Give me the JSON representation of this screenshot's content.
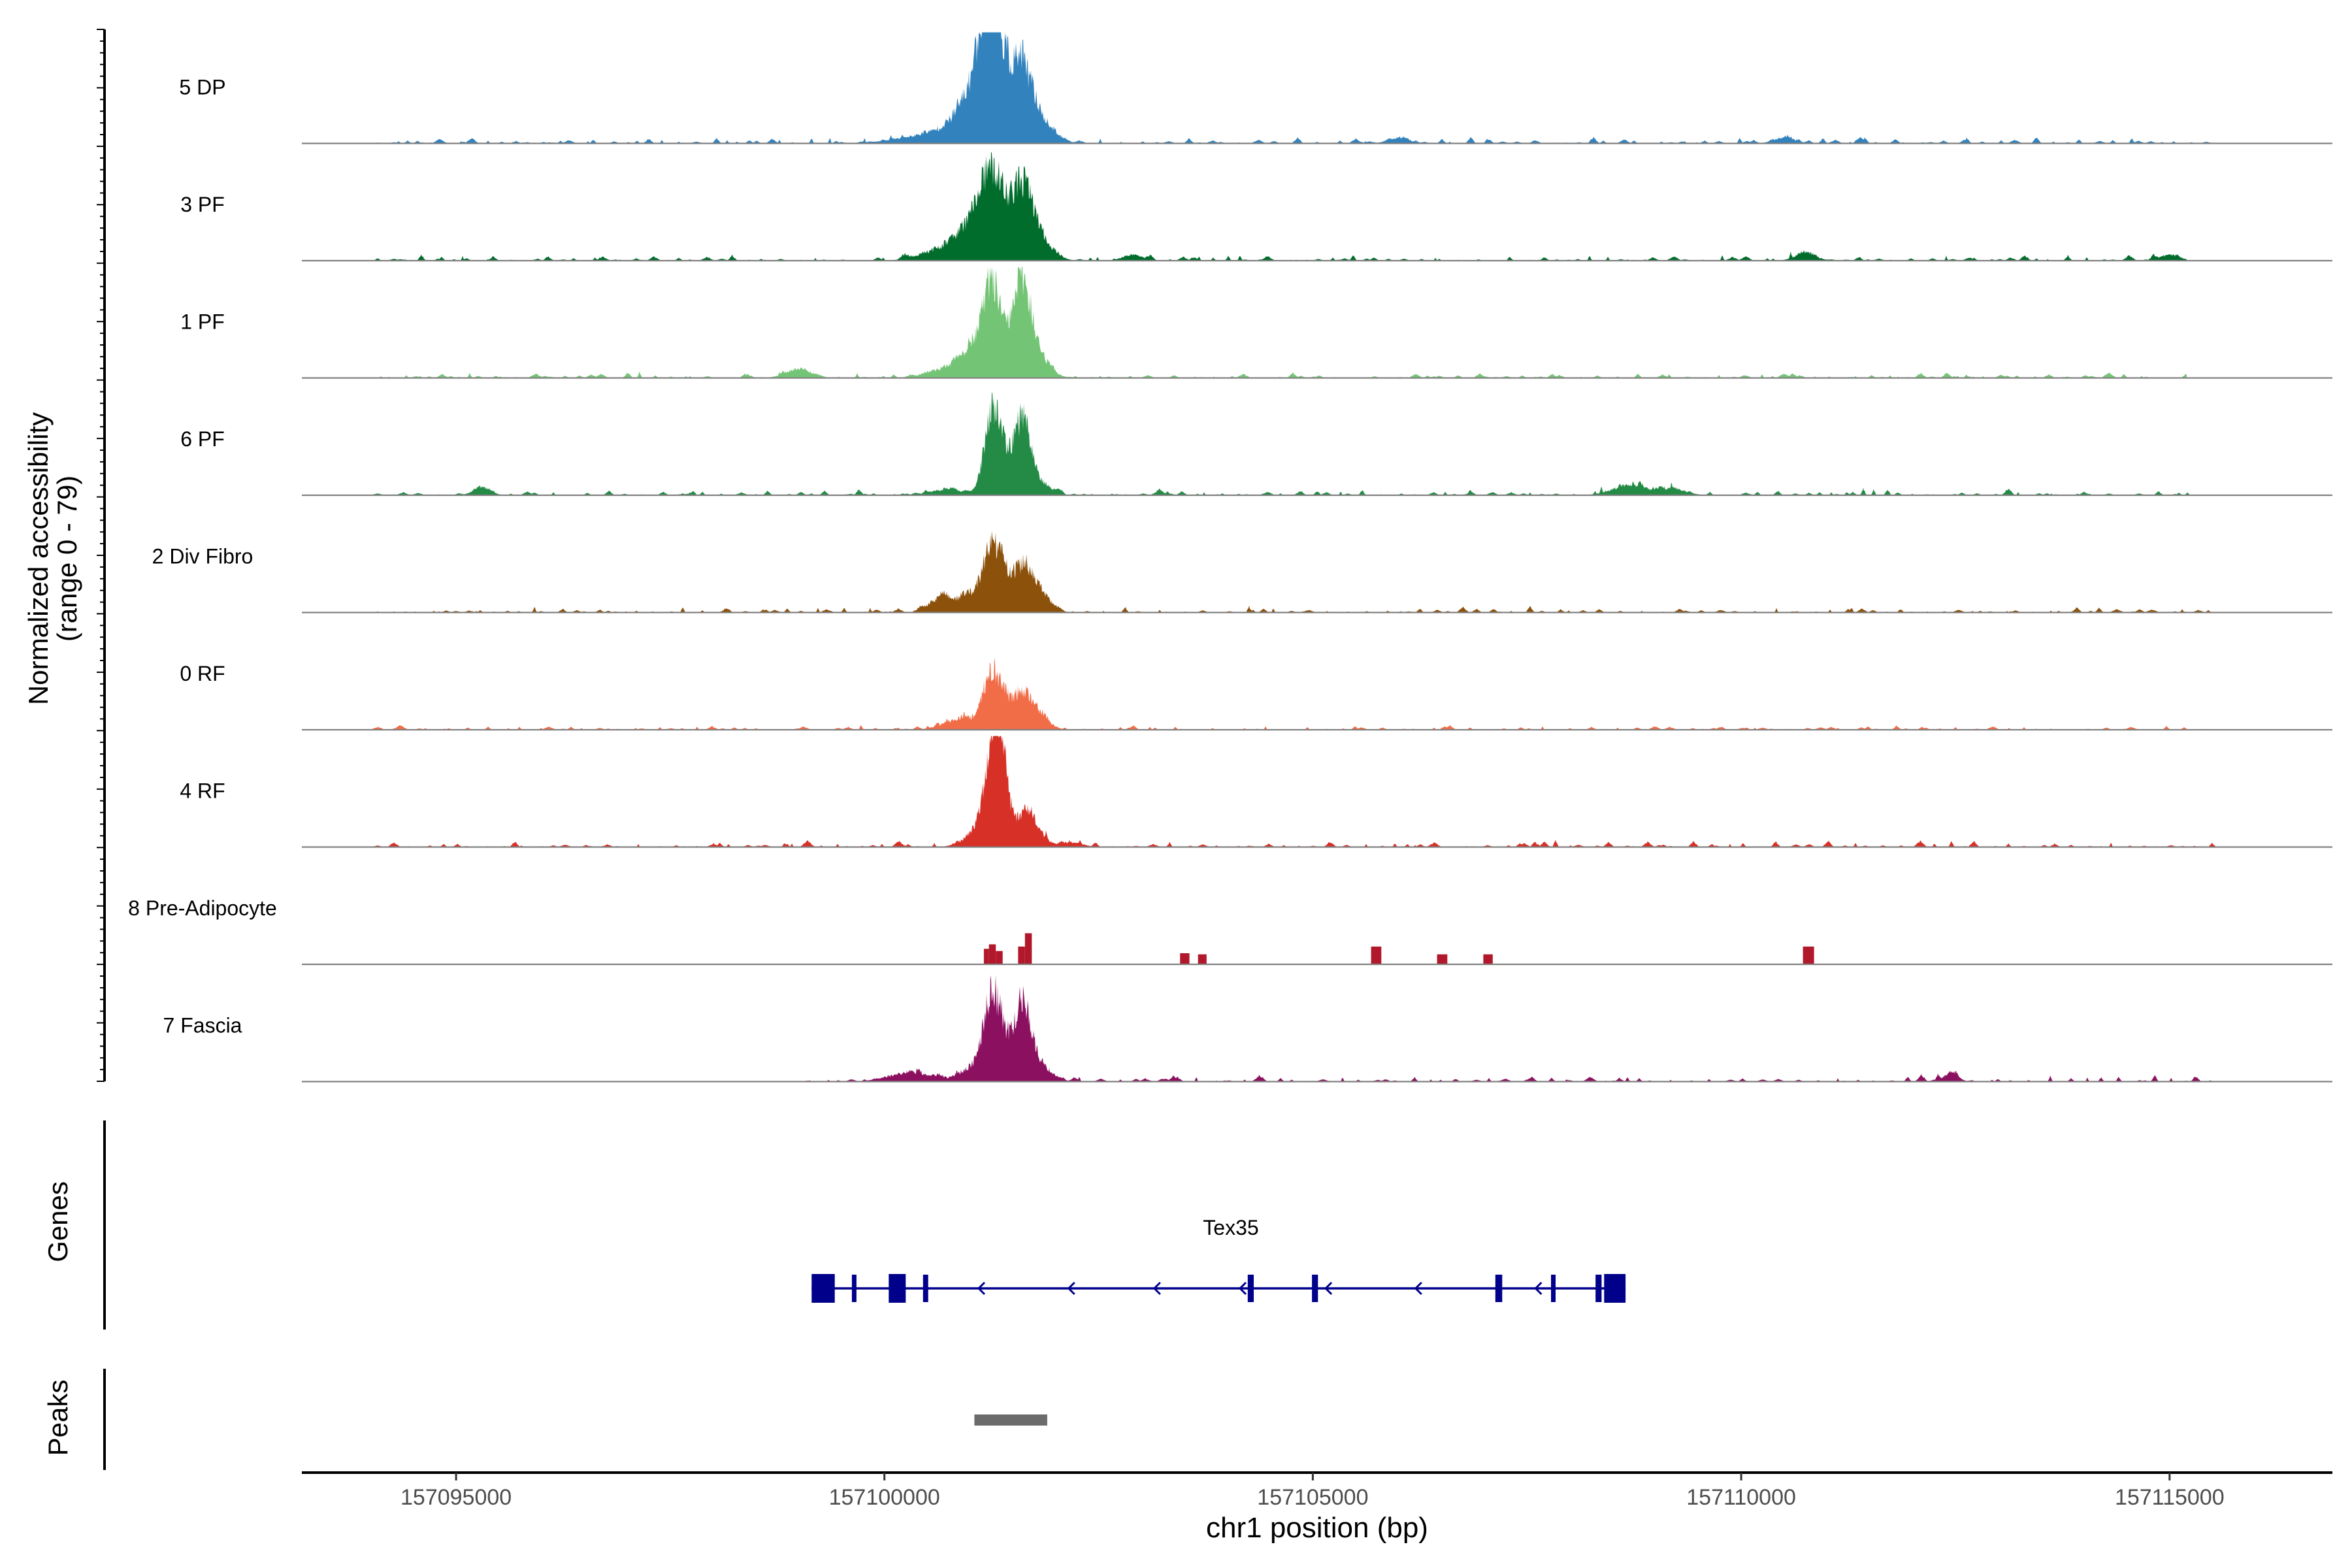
{
  "chart_data": {
    "type": "area",
    "title": "",
    "ylabel_line1": "Normalized accessibility",
    "ylabel_line2": "(range 0 - 79)",
    "xlabel": "chr1 position (bp)",
    "xlim": [
      157093200,
      157116900
    ],
    "ylim": [
      0,
      79
    ],
    "x_ticks": [
      157095000,
      157100000,
      157105000,
      157110000,
      157115000
    ],
    "x_tick_labels": [
      "157095000",
      "157100000",
      "157105000",
      "157110000",
      "157115000"
    ],
    "tracks": [
      {
        "name": "5 DP",
        "color": "#3182bd",
        "region": [
          157094000,
          157115600
        ],
        "noise": 0.035,
        "seed": 11,
        "peaks": [
          [
            157100500,
            0.07,
            350
          ],
          [
            157100900,
            0.14,
            220
          ],
          [
            157101050,
            0.32,
            150
          ],
          [
            157101200,
            0.62,
            100
          ],
          [
            157101280,
            0.55,
            120
          ],
          [
            157101400,
            0.35,
            150
          ],
          [
            157101600,
            0.42,
            110
          ],
          [
            157101720,
            0.22,
            140
          ],
          [
            157101900,
            0.08,
            150
          ],
          [
            157106000,
            0.05,
            120
          ],
          [
            157110500,
            0.05,
            120
          ]
        ]
      },
      {
        "name": "3 PF",
        "color": "#006d2c",
        "region": [
          157094000,
          157115200
        ],
        "noise": 0.035,
        "seed": 23,
        "peaks": [
          [
            157100700,
            0.1,
            250
          ],
          [
            157100950,
            0.2,
            150
          ],
          [
            157101150,
            0.42,
            110
          ],
          [
            157101300,
            0.45,
            110
          ],
          [
            157101450,
            0.25,
            140
          ],
          [
            157101620,
            0.5,
            110
          ],
          [
            157101800,
            0.2,
            150
          ],
          [
            157102900,
            0.05,
            120
          ],
          [
            157110750,
            0.07,
            120
          ],
          [
            157115000,
            0.05,
            120
          ]
        ]
      },
      {
        "name": "1 PF",
        "color": "#74c476",
        "region": [
          157094000,
          157115200
        ],
        "noise": 0.03,
        "seed": 37,
        "peaks": [
          [
            157099000,
            0.08,
            150
          ],
          [
            157100800,
            0.1,
            250
          ],
          [
            157101050,
            0.25,
            120
          ],
          [
            157101250,
            0.75,
            90
          ],
          [
            157101450,
            0.3,
            110
          ],
          [
            157101620,
            0.75,
            90
          ],
          [
            157101800,
            0.2,
            130
          ]
        ]
      },
      {
        "name": "6 PF",
        "color": "#238b45",
        "region": [
          157094000,
          157115400
        ],
        "noise": 0.035,
        "seed": 41,
        "peaks": [
          [
            157095300,
            0.07,
            100
          ],
          [
            157100750,
            0.05,
            200
          ],
          [
            157101250,
            0.65,
            90
          ],
          [
            157101400,
            0.3,
            100
          ],
          [
            157101620,
            0.66,
            90
          ],
          [
            157101800,
            0.1,
            130
          ],
          [
            157108700,
            0.09,
            200
          ],
          [
            157109200,
            0.06,
            150
          ]
        ]
      },
      {
        "name": "2 Div Fibro",
        "color": "#8c510a",
        "region": [
          157094000,
          157115500
        ],
        "noise": 0.035,
        "seed": 53,
        "peaks": [
          [
            157100650,
            0.12,
            130
          ],
          [
            157101050,
            0.15,
            200
          ],
          [
            157101250,
            0.42,
            100
          ],
          [
            157101400,
            0.25,
            120
          ],
          [
            157101620,
            0.32,
            100
          ],
          [
            157101800,
            0.18,
            130
          ]
        ]
      },
      {
        "name": "0 RF",
        "color": "#f16d48",
        "region": [
          157094000,
          157115600
        ],
        "noise": 0.025,
        "seed": 61,
        "peaks": [
          [
            157100900,
            0.1,
            200
          ],
          [
            157101250,
            0.42,
            100
          ],
          [
            157101400,
            0.2,
            110
          ],
          [
            157101620,
            0.28,
            100
          ],
          [
            157101800,
            0.12,
            120
          ]
        ]
      },
      {
        "name": "4 RF",
        "color": "#d73027",
        "region": [
          157094000,
          157115600
        ],
        "noise": 0.035,
        "seed": 71,
        "peaks": [
          [
            157101050,
            0.1,
            150
          ],
          [
            157101200,
            0.4,
            90
          ],
          [
            157101300,
            0.85,
            70
          ],
          [
            157101400,
            0.5,
            80
          ],
          [
            157101650,
            0.32,
            80
          ],
          [
            157101800,
            0.12,
            100
          ],
          [
            157102200,
            0.04,
            120
          ]
        ]
      },
      {
        "name": "8 Pre-Adipocyte",
        "color": "#b2182b",
        "region": [
          157101000,
          157111000
        ],
        "noise": 0.0,
        "seed": 83,
        "bars": [
          [
            157101160,
            157101220,
            0.14
          ],
          [
            157101220,
            157101300,
            0.18
          ],
          [
            157101300,
            157101380,
            0.12
          ],
          [
            157101560,
            157101640,
            0.16
          ],
          [
            157101640,
            157101720,
            0.28
          ],
          [
            157103450,
            157103560,
            0.1
          ],
          [
            157103660,
            157103760,
            0.09
          ],
          [
            157105680,
            157105800,
            0.16
          ],
          [
            157106450,
            157106570,
            0.09
          ],
          [
            157106990,
            157107100,
            0.09
          ],
          [
            157110720,
            157110850,
            0.16
          ]
        ]
      },
      {
        "name": "7 Fascia",
        "color": "#8c1060",
        "region": [
          157099000,
          157115500
        ],
        "noise": 0.035,
        "seed": 97,
        "peaks": [
          [
            157100300,
            0.08,
            250
          ],
          [
            157101100,
            0.15,
            180
          ],
          [
            157101250,
            0.6,
            90
          ],
          [
            157101400,
            0.3,
            110
          ],
          [
            157101620,
            0.62,
            90
          ],
          [
            157101800,
            0.15,
            140
          ],
          [
            157112450,
            0.08,
            80
          ]
        ]
      }
    ],
    "genes_label": "Genes",
    "gene": {
      "name": "Tex35",
      "color": "#00008b",
      "start": 157099150,
      "end": 157108650,
      "strand": "-",
      "exons": [
        [
          157099150,
          157099420,
          "big"
        ],
        [
          157099620,
          157099660,
          "small"
        ],
        [
          157100050,
          157100230,
          "big"
        ],
        [
          157100450,
          157100510,
          "small"
        ],
        [
          157104240,
          157104310,
          "small"
        ],
        [
          157104990,
          157105060,
          "small"
        ],
        [
          157107130,
          157107210,
          "small"
        ],
        [
          157107780,
          157107830,
          "small"
        ],
        [
          157108300,
          157108370,
          "small"
        ],
        [
          157108400,
          157108650,
          "big"
        ]
      ]
    },
    "peaks_label": "Peaks",
    "peak_regions": [
      [
        157101050,
        157101900
      ]
    ],
    "peak_color": "#6b6b6b"
  }
}
